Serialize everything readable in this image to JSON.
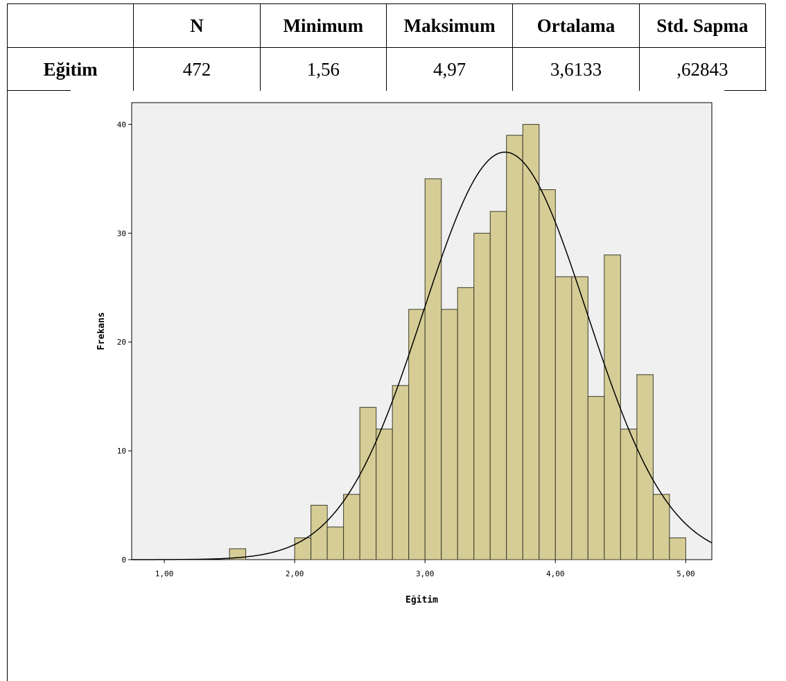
{
  "table": {
    "headers": [
      "",
      "N",
      "Minimum",
      "Maksimum",
      "Ortalama",
      "Std. Sapma"
    ],
    "row": {
      "label": "Eğitim",
      "values": [
        "472",
        "1,56",
        "4,97",
        "3,6133",
        ",62843"
      ]
    }
  },
  "chart_data": {
    "type": "bar",
    "subtype": "histogram",
    "xlabel": "Eğitim",
    "ylabel": "Frekans",
    "xlim": [
      0.75,
      5.2
    ],
    "ylim": [
      0,
      42
    ],
    "x_ticks": [
      1.0,
      2.0,
      3.0,
      4.0,
      5.0
    ],
    "x_tick_labels": [
      "1,00",
      "2,00",
      "3,00",
      "4,00",
      "5,00"
    ],
    "y_ticks": [
      0,
      10,
      20,
      30,
      40
    ],
    "y_tick_labels": [
      "0",
      "10",
      "20",
      "30",
      "40"
    ],
    "bin_width": 0.125,
    "bins": [
      {
        "start": 1.5,
        "end": 1.625,
        "count": 1
      },
      {
        "start": 2.0,
        "end": 2.125,
        "count": 2
      },
      {
        "start": 2.125,
        "end": 2.25,
        "count": 5
      },
      {
        "start": 2.25,
        "end": 2.375,
        "count": 3
      },
      {
        "start": 2.375,
        "end": 2.5,
        "count": 6
      },
      {
        "start": 2.5,
        "end": 2.625,
        "count": 14
      },
      {
        "start": 2.625,
        "end": 2.75,
        "count": 12
      },
      {
        "start": 2.75,
        "end": 2.875,
        "count": 16
      },
      {
        "start": 2.875,
        "end": 3.0,
        "count": 23
      },
      {
        "start": 3.0,
        "end": 3.125,
        "count": 35
      },
      {
        "start": 3.125,
        "end": 3.25,
        "count": 23
      },
      {
        "start": 3.25,
        "end": 3.375,
        "count": 25
      },
      {
        "start": 3.375,
        "end": 3.5,
        "count": 30
      },
      {
        "start": 3.5,
        "end": 3.625,
        "count": 32
      },
      {
        "start": 3.625,
        "end": 3.75,
        "count": 39
      },
      {
        "start": 3.75,
        "end": 3.875,
        "count": 40
      },
      {
        "start": 3.875,
        "end": 4.0,
        "count": 34
      },
      {
        "start": 4.0,
        "end": 4.125,
        "count": 26
      },
      {
        "start": 4.125,
        "end": 4.25,
        "count": 26
      },
      {
        "start": 4.25,
        "end": 4.375,
        "count": 15
      },
      {
        "start": 4.375,
        "end": 4.5,
        "count": 28
      },
      {
        "start": 4.5,
        "end": 4.625,
        "count": 12
      },
      {
        "start": 4.625,
        "end": 4.75,
        "count": 17
      },
      {
        "start": 4.75,
        "end": 4.875,
        "count": 6
      },
      {
        "start": 4.875,
        "end": 5.0,
        "count": 2
      }
    ],
    "normal_curve": {
      "mean": 3.6133,
      "std": 0.62843,
      "n": 472
    },
    "grid": false,
    "colors": {
      "bar_fill": "#d6cd96",
      "bar_stroke": "#3a3a2a",
      "plot_bg": "#f0f0f0",
      "curve": "#000000"
    }
  }
}
